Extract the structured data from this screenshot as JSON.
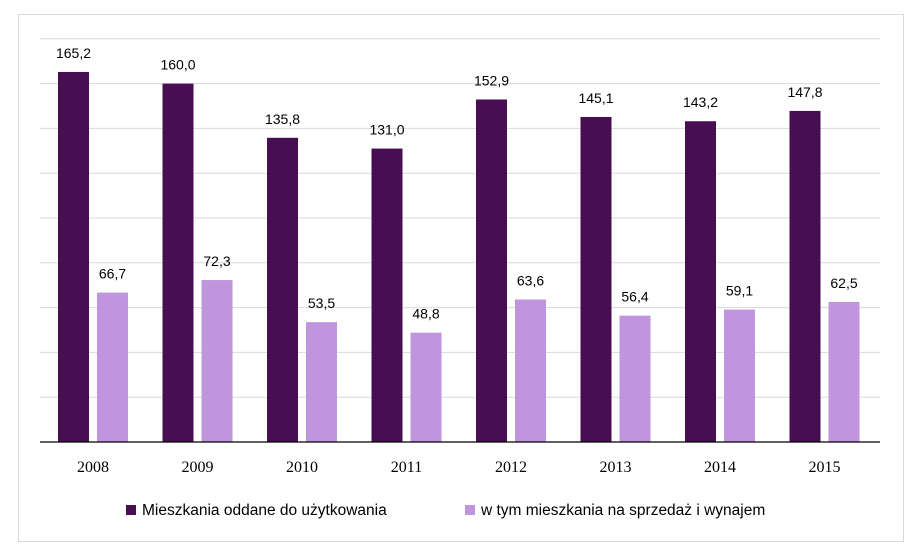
{
  "chart_data": {
    "type": "bar",
    "categories": [
      "2008",
      "2009",
      "2010",
      "2011",
      "2012",
      "2013",
      "2014",
      "2015"
    ],
    "series": [
      {
        "name": "Mieszkania oddane do użytkowania",
        "color": "#470e52",
        "values": [
          165.2,
          160.0,
          135.8,
          131.0,
          152.9,
          145.1,
          143.2,
          147.8
        ],
        "labels": [
          "165,2",
          "160,0",
          "135,8",
          "131,0",
          "152,9",
          "145,1",
          "143,2",
          "147,8"
        ]
      },
      {
        "name": "w tym mieszkania na sprzedaż i wynajem",
        "color": "#bf95dd",
        "values": [
          66.7,
          72.3,
          53.5,
          48.8,
          63.6,
          56.4,
          59.1,
          62.5
        ],
        "labels": [
          "66,7",
          "72,3",
          "53,5",
          "48,8",
          "63,6",
          "56,4",
          "59,1",
          "62,5"
        ]
      }
    ],
    "title": "",
    "xlabel": "",
    "ylabel": "",
    "ylim": [
      0,
      180
    ],
    "grid": true,
    "gridline_color": "#d9d9d9",
    "axis_color": "#000000",
    "legend_position": "bottom"
  }
}
